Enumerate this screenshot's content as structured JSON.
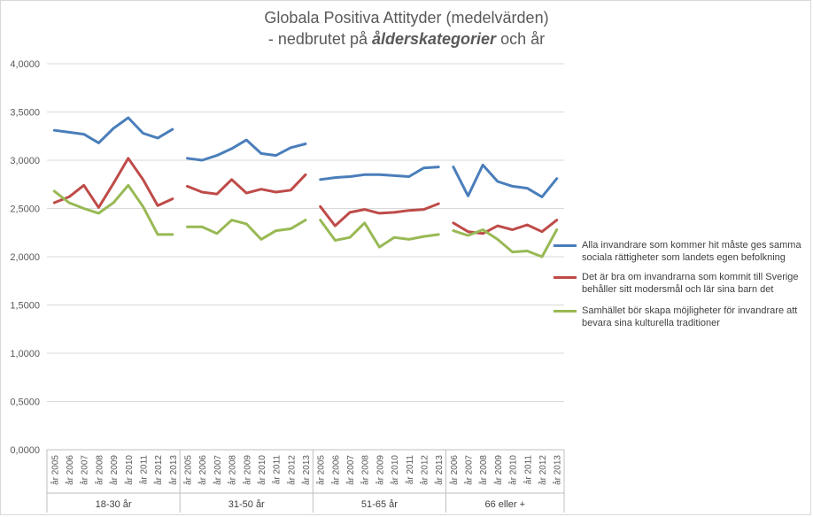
{
  "chart_data": {
    "type": "line",
    "title": "Globala Positiva Attityder (medelvärden)",
    "subtitle_parts": [
      "- nedbrutet på ",
      "ålderskategorier",
      " och år"
    ],
    "ylim": [
      0,
      4
    ],
    "yticks": [
      "0,0000",
      "0,5000",
      "1,0000",
      "1,5000",
      "2,0000",
      "2,5000",
      "3,0000",
      "3,5000",
      "4,0000"
    ],
    "grid": true,
    "legend_position": "right",
    "groups": [
      {
        "label": "18-30 år",
        "years": [
          "år 2005",
          "år 2006",
          "år 2007",
          "år 2008",
          "år 2009",
          "år 2010",
          "år 2011",
          "år 2012",
          "år 2013"
        ]
      },
      {
        "label": "31-50 år",
        "years": [
          "år 2005",
          "år 2006",
          "år 2007",
          "år 2008",
          "år 2009",
          "år 2010",
          "år 2011",
          "år 2012",
          "år 2013"
        ]
      },
      {
        "label": "51-65 år",
        "years": [
          "år 2005",
          "år 2006",
          "år 2007",
          "år 2008",
          "år 2009",
          "år 2010",
          "år 2011",
          "år 2012",
          "år 2013"
        ]
      },
      {
        "label": "66 eller +",
        "years": [
          "år 2006",
          "år 2007",
          "år 2008",
          "år 2009",
          "år 2010",
          "år 2011",
          "år 2012",
          "år 2013"
        ]
      }
    ],
    "series": [
      {
        "name": "Alla invandrare som kommer hit måste ges samma sociala rättigheter som landets egen befolkning",
        "color": "#4a7ebb",
        "values": [
          [
            3.31,
            3.29,
            3.27,
            3.18,
            3.33,
            3.44,
            3.28,
            3.23,
            3.32
          ],
          [
            3.02,
            3.0,
            3.05,
            3.12,
            3.21,
            3.07,
            3.05,
            3.13,
            3.17
          ],
          [
            2.8,
            2.82,
            2.83,
            2.85,
            2.85,
            2.84,
            2.83,
            2.92,
            2.93
          ],
          [
            2.93,
            2.63,
            2.95,
            2.78,
            2.73,
            2.71,
            2.62,
            2.81
          ]
        ]
      },
      {
        "name": "Det är bra om invandrarna som kommit till Sverige behåller sitt modersmål och lär sina barn det",
        "color": "#be4b48",
        "values": [
          [
            2.56,
            2.62,
            2.74,
            2.51,
            2.76,
            3.02,
            2.8,
            2.53,
            2.6
          ],
          [
            2.73,
            2.67,
            2.65,
            2.8,
            2.66,
            2.7,
            2.67,
            2.69,
            2.85
          ],
          [
            2.52,
            2.32,
            2.46,
            2.49,
            2.45,
            2.46,
            2.48,
            2.49,
            2.55
          ],
          [
            2.35,
            2.26,
            2.24,
            2.32,
            2.28,
            2.33,
            2.26,
            2.38
          ]
        ]
      },
      {
        "name": "Samhället bör skapa möjligheter för invandrare att bevara sina kulturella traditioner",
        "color": "#98b954",
        "values": [
          [
            2.68,
            2.56,
            2.5,
            2.45,
            2.56,
            2.74,
            2.52,
            2.23,
            2.23
          ],
          [
            2.31,
            2.31,
            2.24,
            2.38,
            2.34,
            2.18,
            2.27,
            2.29,
            2.38
          ],
          [
            2.38,
            2.17,
            2.2,
            2.35,
            2.1,
            2.2,
            2.18,
            2.21,
            2.23
          ],
          [
            2.27,
            2.22,
            2.28,
            2.18,
            2.05,
            2.06,
            2.0,
            2.28
          ]
        ]
      }
    ]
  }
}
